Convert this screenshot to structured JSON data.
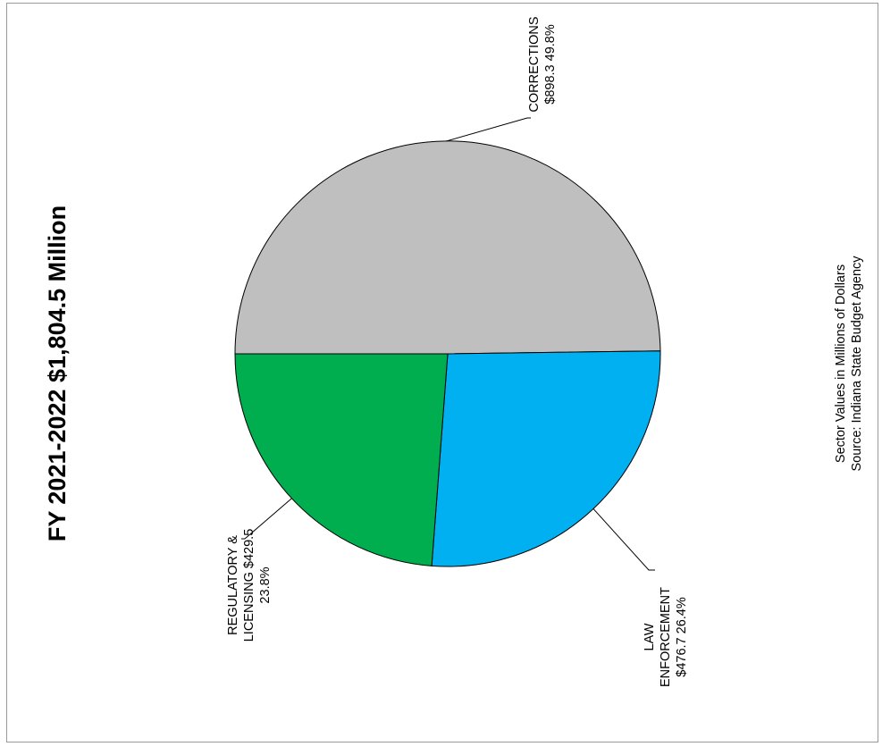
{
  "chart_data": {
    "type": "pie",
    "title": "FY 2021-2022  $1,804.5 Million",
    "total": 1804.5,
    "slices": [
      {
        "name": "CORRECTIONS",
        "value": 898.3,
        "percent": 49.8,
        "color": "#bfbfbf",
        "label_lines": [
          "CORRECTIONS",
          "$898.3  49.8%"
        ]
      },
      {
        "name": "LAW ENFORCEMENT",
        "value": 476.7,
        "percent": 26.4,
        "color": "#00b0f0",
        "label_lines": [
          "LAW",
          "ENFORCEMENT",
          "$476.7  26.4%"
        ]
      },
      {
        "name": "REGULATORY & LICENSING",
        "value": 429.5,
        "percent": 23.8,
        "color": "#00ad4f",
        "label_lines": [
          "REGULATORY &",
          "LICENSING  $429.5",
          "23.8%"
        ]
      }
    ],
    "notes": [
      "Sector Values in Millions of Dollars",
      "Source:  Indiana State Budget Agency"
    ]
  }
}
